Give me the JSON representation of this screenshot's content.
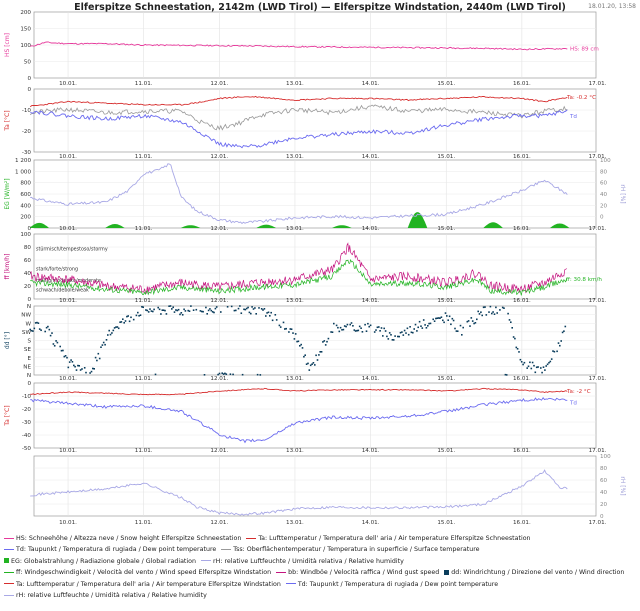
{
  "header": {
    "title": "Elferspitze Schneestation, 2142m (LWD Tirol) — Elferspitze Windstation, 2440m (LWD Tirol)",
    "timestamp": "18.01.20, 13:58"
  },
  "colors": {
    "hs": "#e6399b",
    "ta": "#d62d2d",
    "td": "#6b6bf0",
    "tss": "#999999",
    "eg": "#22b322",
    "rh": "#a9a9e6",
    "ff": "#22b322",
    "bb": "#c4147f",
    "dd": "#0b3d5c"
  },
  "x_ticks": [
    "10.01.",
    "11.01.",
    "12.01.",
    "13.01.",
    "14.01.",
    "15.01.",
    "16.01.",
    "17.01."
  ],
  "legend": [
    [
      {
        "kind": "line",
        "color": "#e6399b",
        "text": "HS: Schneehöhe / Altezza neve / Snow height  Elferspitze Schneestation"
      },
      {
        "kind": "line",
        "color": "#d62d2d",
        "text": "Ta: Lufttemperatur / Temperatura dell' aria / Air temperature  Elferspitze Schneestation"
      }
    ],
    [
      {
        "kind": "line",
        "color": "#6b6bf0",
        "text": "Td: Taupunkt / Temperatura di rugiada / Dew point temperature"
      },
      {
        "kind": "line",
        "color": "#999999",
        "text": "Tss: Oberflächentemperatur / Temperatura in superficie / Surface temperature"
      }
    ],
    [
      {
        "kind": "square",
        "color": "#22b322",
        "text": "EG: Globalstrahlung / Radiazione globale / Global radiation"
      },
      {
        "kind": "line",
        "color": "#a9a9e6",
        "text": "rH: relative Luftfeuchte / Umidità relativa / Relative humidity"
      }
    ],
    [
      {
        "kind": "line",
        "color": "#22b322",
        "text": "ff: Windgeschwindigkeit / Velocità del vento / Wind speed  Elferspitze Windstation"
      },
      {
        "kind": "line",
        "color": "#c4147f",
        "text": "bb: Windböe / Velocità raffica / Wind gust speed"
      },
      {
        "kind": "square",
        "color": "#0b3d5c",
        "text": "dd: Windrichtung / Direzione del vento / Wind direction"
      }
    ],
    [
      {
        "kind": "line",
        "color": "#d62d2d",
        "text": "Ta: Lufttemperatur / Temperatura dell' aria / Air temperature  Elferspitze Windstation"
      },
      {
        "kind": "line",
        "color": "#6b6bf0",
        "text": "Td: Taupunkt / Temperatura di rugiada / Dew point temperature"
      }
    ],
    [
      {
        "kind": "line",
        "color": "#a9a9e6",
        "text": "rH: relative Luftfeuchte / Umidità relativa / Relative humidity"
      }
    ]
  ],
  "chart_data": [
    {
      "type": "line",
      "ylabel": "HS [cm]",
      "yticks": [
        "200",
        "150",
        "100",
        "50",
        "0"
      ],
      "ylim": [
        0,
        200
      ],
      "x": [
        9.5,
        9.7,
        10.0,
        10.5,
        11.0,
        11.5,
        12.0,
        12.5,
        13.0,
        13.5,
        14.0,
        14.5,
        15.0,
        15.5,
        16.0,
        16.3,
        16.6
      ],
      "series": [
        {
          "name": "HS",
          "values": [
            95,
            108,
            104,
            104,
            100,
            99,
            98,
            97,
            95,
            94,
            93,
            92,
            91,
            90,
            87,
            88,
            89
          ]
        }
      ],
      "annotation": "HS: 89 cm"
    },
    {
      "type": "line",
      "ylabel": "Ta [°C]",
      "yticks": [
        "0",
        "-10",
        "-20",
        "-30"
      ],
      "ylim": [
        -35,
        5
      ],
      "x": [
        9.5,
        10.0,
        10.5,
        11.0,
        11.5,
        11.8,
        12.0,
        12.3,
        12.5,
        13.0,
        13.5,
        14.0,
        14.5,
        15.0,
        15.5,
        16.0,
        16.3,
        16.6
      ],
      "series": [
        {
          "name": "Ta",
          "values": [
            -6,
            -3,
            -4,
            -5,
            -5,
            -3,
            -1,
            0,
            0,
            -2,
            -1,
            -1,
            -2,
            -1,
            0,
            -1,
            -3,
            -0.2
          ]
        },
        {
          "name": "Td",
          "values": [
            -9,
            -12,
            -14,
            -12,
            -16,
            -24,
            -30,
            -32,
            -31,
            -26,
            -24,
            -22,
            -23,
            -18,
            -14,
            -12,
            -12,
            -9
          ]
        },
        {
          "name": "Tss",
          "values": [
            -10,
            -8,
            -10,
            -9,
            -9,
            -17,
            -20,
            -16,
            -12,
            -8,
            -10,
            -6,
            -9,
            -8,
            -10,
            -12,
            -9,
            -7
          ]
        }
      ],
      "annotations": [
        "Ta: -0.2 °C",
        "Td"
      ]
    },
    {
      "type": "area",
      "ylabel": "EG [W/m²]",
      "yticks": [
        "1 200",
        "1 000",
        "800",
        "600",
        "400",
        "200",
        "0"
      ],
      "ylim": [
        0,
        1200
      ],
      "y2label": "rH [%]",
      "y2ticks": [
        "100",
        "80",
        "60",
        "40",
        "20",
        "0"
      ],
      "y2lim": [
        0,
        100
      ],
      "x": [
        9.5,
        9.7,
        10.0,
        10.5,
        10.8,
        11.0,
        11.2,
        11.35,
        11.5,
        11.7,
        12.0,
        12.3,
        12.6,
        13.0,
        13.5,
        14.0,
        14.5,
        15.0,
        15.5,
        16.0,
        16.3,
        16.6
      ],
      "series": [
        {
          "name": "rH",
          "values": [
            45,
            40,
            35,
            38,
            55,
            80,
            85,
            95,
            45,
            25,
            12,
            8,
            10,
            15,
            17,
            15,
            18,
            20,
            35,
            55,
            70,
            50
          ]
        },
        {
          "name": "EG",
          "values": [
            0,
            90,
            0,
            0,
            70,
            0,
            0,
            50,
            0,
            0,
            60,
            0,
            0,
            50,
            0,
            0,
            280,
            0,
            100,
            0,
            80,
            0
          ]
        }
      ]
    },
    {
      "type": "line",
      "ylabel": "ff [km/h]",
      "yticks": [
        "100",
        "80",
        "60",
        "40",
        "20",
        "0"
      ],
      "ylim": [
        0,
        100
      ],
      "category_labels": [
        "stürmisch/tempestoso/stormy",
        "stark/forte/strong",
        "mäßig/moderato/moderate",
        "schwach/debole/weak"
      ],
      "x": [
        9.5,
        10.0,
        10.5,
        11.0,
        11.5,
        12.0,
        12.5,
        13.0,
        13.5,
        13.7,
        13.8,
        14.0,
        14.5,
        15.0,
        15.4,
        15.6,
        16.0,
        16.3,
        16.6
      ],
      "series": [
        {
          "name": "bb",
          "values": [
            35,
            30,
            20,
            15,
            25,
            18,
            25,
            30,
            45,
            80,
            65,
            30,
            35,
            25,
            40,
            20,
            15,
            25,
            45
          ]
        },
        {
          "name": "ff",
          "values": [
            25,
            22,
            15,
            10,
            18,
            12,
            18,
            22,
            35,
            60,
            50,
            22,
            25,
            18,
            30,
            12,
            10,
            18,
            31
          ]
        }
      ],
      "annotation": "ff: 30.8 km/h"
    },
    {
      "type": "scatter",
      "ylabel": "dd [°]",
      "yticks": [
        "N",
        "NW",
        "W",
        "SW",
        "S",
        "SE",
        "E",
        "NE",
        "N"
      ],
      "ylim": [
        0,
        360
      ],
      "x": [
        9.5,
        9.7,
        10.0,
        10.3,
        10.6,
        11.0,
        11.3,
        11.6,
        12.0,
        12.3,
        12.6,
        13.0,
        13.2,
        13.5,
        13.8,
        14.0,
        14.3,
        14.6,
        15.0,
        15.2,
        15.5,
        15.8,
        16.0,
        16.3,
        16.6
      ],
      "series": [
        {
          "name": "dd",
          "values": [
            250,
            250,
            60,
            20,
            250,
            345,
            340,
            335,
            345,
            345,
            335,
            210,
            30,
            250,
            250,
            250,
            200,
            250,
            300,
            230,
            335,
            340,
            60,
            20,
            250
          ]
        }
      ]
    },
    {
      "type": "line",
      "ylabel": "Ta [°C]",
      "yticks": [
        "0",
        "-10",
        "-20",
        "-30",
        "-40",
        "-50"
      ],
      "ylim": [
        -52,
        5
      ],
      "x": [
        9.5,
        10.0,
        10.5,
        11.0,
        11.5,
        12.0,
        12.3,
        12.6,
        13.0,
        13.5,
        14.0,
        14.5,
        15.0,
        15.5,
        16.0,
        16.3,
        16.6
      ],
      "series": [
        {
          "name": "Ta",
          "values": [
            -5,
            -3,
            -4,
            -5,
            -5,
            -2,
            -1,
            0,
            -2,
            -1,
            -1,
            -1,
            -2,
            0,
            -1,
            -3,
            -2
          ]
        },
        {
          "name": "Td",
          "values": [
            -10,
            -13,
            -16,
            -15,
            -20,
            -40,
            -46,
            -45,
            -30,
            -25,
            -26,
            -24,
            -20,
            -14,
            -10,
            -9,
            -10
          ]
        }
      ],
      "annotations": [
        "Ta: -2 °C",
        "Td"
      ]
    },
    {
      "type": "line",
      "y2label": "rH [%]",
      "y2ticks": [
        "100",
        "80",
        "60",
        "40",
        "20",
        "0"
      ],
      "y2lim": [
        0,
        100
      ],
      "x": [
        9.5,
        10.0,
        10.5,
        11.0,
        11.3,
        11.5,
        11.7,
        12.0,
        12.3,
        12.6,
        13.0,
        13.5,
        14.0,
        14.5,
        15.0,
        15.5,
        16.0,
        16.3,
        16.5,
        16.6
      ],
      "series": [
        {
          "name": "rH",
          "values": [
            35,
            40,
            45,
            55,
            40,
            30,
            15,
            5,
            3,
            5,
            12,
            15,
            14,
            14,
            15,
            20,
            50,
            75,
            48,
            45
          ]
        }
      ]
    }
  ]
}
